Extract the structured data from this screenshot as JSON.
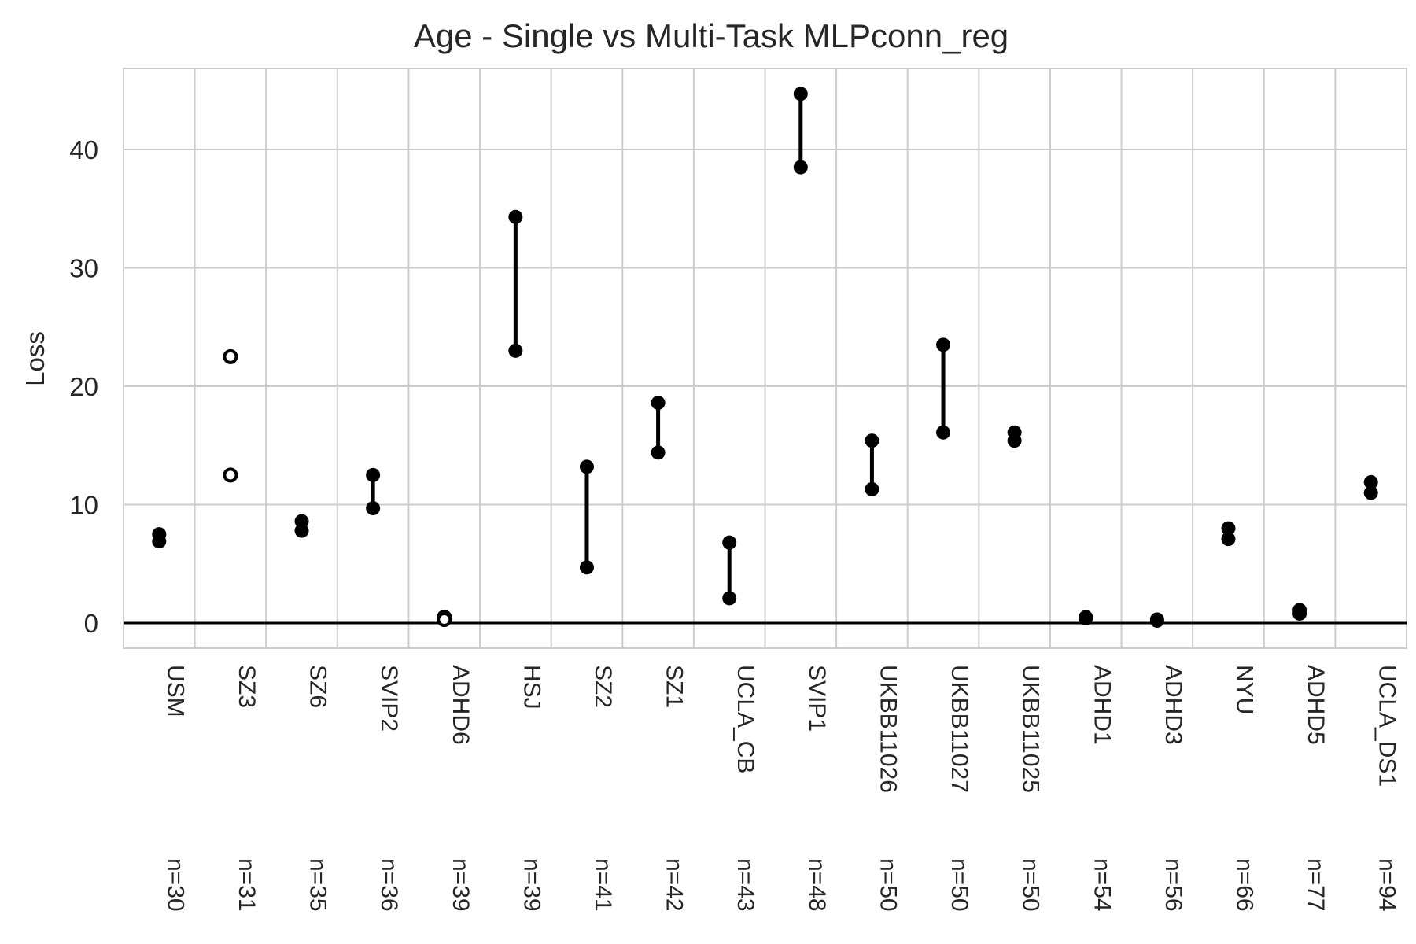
{
  "chart_data": {
    "type": "scatter",
    "title": "Age - Single vs Multi-Task MLPconn_reg",
    "xlabel": "",
    "ylabel": "Loss",
    "ylim": [
      -2,
      47
    ],
    "yticks": [
      0,
      10,
      20,
      30,
      40
    ],
    "grid": true,
    "zero_line": 0,
    "categories": [
      "USM",
      "SZ3",
      "SZ6",
      "SVIP2",
      "ADHD6",
      "HSJ",
      "SZ2",
      "SZ1",
      "UCLA_CB",
      "SVIP1",
      "UKBB11026",
      "UKBB11027",
      "UKBB11025",
      "ADHD1",
      "ADHD3",
      "NYU",
      "ADHD5",
      "UCLA_DS1"
    ],
    "sample_sizes": [
      "n=30",
      "n=31",
      "n=35",
      "n=36",
      "n=39",
      "n=39",
      "n=41",
      "n=42",
      "n=43",
      "n=48",
      "n=50",
      "n=50",
      "n=50",
      "n=54",
      "n=56",
      "n=66",
      "n=77",
      "n=94"
    ],
    "pairs": [
      {
        "a": 7.5,
        "b": 6.9,
        "filled": true
      },
      {
        "a": 22.5,
        "b": 12.5,
        "filled": false
      },
      {
        "a": 8.6,
        "b": 7.8,
        "filled": true
      },
      {
        "a": 12.5,
        "b": 9.7,
        "filled": true
      },
      {
        "a": 0.5,
        "b": 0.3,
        "filled": false
      },
      {
        "a": 34.3,
        "b": 23.0,
        "filled": true
      },
      {
        "a": 13.2,
        "b": 4.7,
        "filled": true
      },
      {
        "a": 18.6,
        "b": 14.4,
        "filled": true
      },
      {
        "a": 6.8,
        "b": 2.1,
        "filled": true
      },
      {
        "a": 44.7,
        "b": 38.5,
        "filled": true
      },
      {
        "a": 15.4,
        "b": 11.3,
        "filled": true
      },
      {
        "a": 23.5,
        "b": 16.1,
        "filled": true
      },
      {
        "a": 16.1,
        "b": 15.4,
        "filled": true
      },
      {
        "a": 0.5,
        "b": 0.4,
        "filled": true
      },
      {
        "a": 0.3,
        "b": 0.2,
        "filled": true
      },
      {
        "a": 8.0,
        "b": 7.1,
        "filled": true
      },
      {
        "a": 1.1,
        "b": 0.8,
        "filled": true
      },
      {
        "a": 11.9,
        "b": 11.0,
        "filled": true
      }
    ],
    "colors": {
      "marker": "#000000",
      "grid": "#cccccc",
      "text": "#262626",
      "zero_line": "#000000"
    }
  }
}
